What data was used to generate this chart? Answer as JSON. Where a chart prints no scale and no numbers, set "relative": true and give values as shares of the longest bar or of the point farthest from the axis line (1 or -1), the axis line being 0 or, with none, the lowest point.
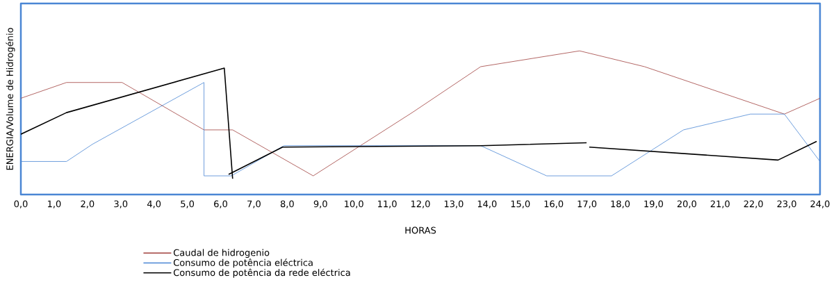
{
  "chart_data": {
    "type": "line",
    "relative": true,
    "xlabel": "HORAS",
    "ylabel": "ENERGIA/Volume de Hidrogénio",
    "xlim": [
      0,
      24
    ],
    "xticks": [
      {
        "value": 0,
        "label": "0,0"
      },
      {
        "value": 1,
        "label": "1,0"
      },
      {
        "value": 2,
        "label": "2,0"
      },
      {
        "value": 3,
        "label": "3,0"
      },
      {
        "value": 4,
        "label": "4,0"
      },
      {
        "value": 5,
        "label": "5,0"
      },
      {
        "value": 6,
        "label": "6,0"
      },
      {
        "value": 7,
        "label": "7,0"
      },
      {
        "value": 8,
        "label": "8,0"
      },
      {
        "value": 9,
        "label": "9,0"
      },
      {
        "value": 10,
        "label": "10,0"
      },
      {
        "value": 11,
        "label": "11,0"
      },
      {
        "value": 12,
        "label": "12,0"
      },
      {
        "value": 13,
        "label": "13,0"
      },
      {
        "value": 14,
        "label": "14,0"
      },
      {
        "value": 15,
        "label": "15,0"
      },
      {
        "value": 16,
        "label": "16,0"
      },
      {
        "value": 17,
        "label": "17,0"
      },
      {
        "value": 18,
        "label": "18,0"
      },
      {
        "value": 19,
        "label": "19,0"
      },
      {
        "value": 20,
        "label": "20,0"
      },
      {
        "value": 21,
        "label": "21,0"
      },
      {
        "value": 22,
        "label": "22,0"
      },
      {
        "value": 23,
        "label": "23,0"
      },
      {
        "value": 24,
        "label": "24,0"
      }
    ],
    "legend": "bottom left",
    "grid": false,
    "marker": "none",
    "series": [
      {
        "name": "Caudal de hidrogenio",
        "color": "#a0403d",
        "x": [
          0,
          1.37,
          3.04,
          5.5,
          6.36,
          8.78,
          11.75,
          13.81,
          16.78,
          18.73,
          22.93,
          24
        ],
        "values": [
          0.67,
          0.78,
          0.78,
          0.45,
          0.45,
          0.13,
          0.57,
          0.89,
          1.0,
          0.89,
          0.56,
          0.67
        ]
      },
      {
        "name": "Consumo de potência eléctrica",
        "color": "#4a86d4",
        "x": [
          0,
          1.37,
          2.15,
          5.5,
          5.5,
          6.32,
          7.9,
          13.81,
          15.79,
          17.74,
          19.9,
          21.91,
          22.93,
          24
        ],
        "values": [
          0.23,
          0.23,
          0.35,
          0.78,
          0.13,
          0.13,
          0.34,
          0.34,
          0.13,
          0.13,
          0.45,
          0.56,
          0.56,
          0.23
        ]
      },
      {
        "name": "Consumo de potência da rede eléctrica",
        "color": "#000000",
        "x": [
          0,
          1.37,
          6.11,
          6.36,
          6.3,
          6.24,
          7.86,
          13.81,
          16.99,
          17.03,
          17.07,
          22.74,
          23.9
        ],
        "values": [
          0.42,
          0.57,
          0.88,
          0.11,
          null,
          0.14,
          0.33,
          0.34,
          0.36,
          null,
          0.33,
          0.24,
          0.37
        ]
      }
    ]
  }
}
